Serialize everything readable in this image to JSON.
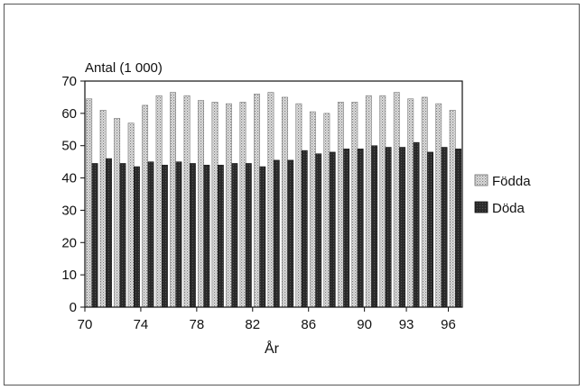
{
  "chart_data": {
    "type": "bar",
    "ylabel": "Antal (1 000)",
    "xlabel": "År",
    "ylim": [
      0,
      70
    ],
    "yticks": [
      0,
      10,
      20,
      30,
      40,
      50,
      60,
      70
    ],
    "x_tick_labels": [
      "70",
      "74",
      "78",
      "82",
      "86",
      "90",
      "93",
      "96"
    ],
    "x_tick_years": [
      1970,
      1974,
      1978,
      1982,
      1986,
      1990,
      1993,
      1996
    ],
    "categories": [
      1970,
      1971,
      1972,
      1973,
      1974,
      1975,
      1976,
      1977,
      1978,
      1979,
      1980,
      1981,
      1982,
      1983,
      1984,
      1985,
      1986,
      1987,
      1988,
      1989,
      1990,
      1991,
      1992,
      1993,
      1994,
      1995,
      1996
    ],
    "series": [
      {
        "name": "Födda",
        "pattern": "light-dotted",
        "values": [
          64.5,
          61,
          58.5,
          57,
          62.5,
          65.5,
          66.5,
          65.5,
          64,
          63.5,
          63,
          63.5,
          66,
          66.5,
          65,
          63,
          60.5,
          60,
          63.5,
          63.5,
          65.5,
          65.5,
          66.5,
          64.5,
          65,
          63,
          61
        ]
      },
      {
        "name": "Döda",
        "pattern": "dark",
        "values": [
          44.5,
          46,
          44.5,
          43.5,
          45,
          44,
          45,
          44.5,
          44,
          44,
          44.5,
          44.5,
          43.5,
          45.5,
          45.5,
          48.5,
          47.5,
          48,
          49,
          49,
          50,
          49.5,
          49.5,
          51,
          48,
          49.5,
          49
        ]
      }
    ],
    "legend_position": "right",
    "grid": false
  }
}
